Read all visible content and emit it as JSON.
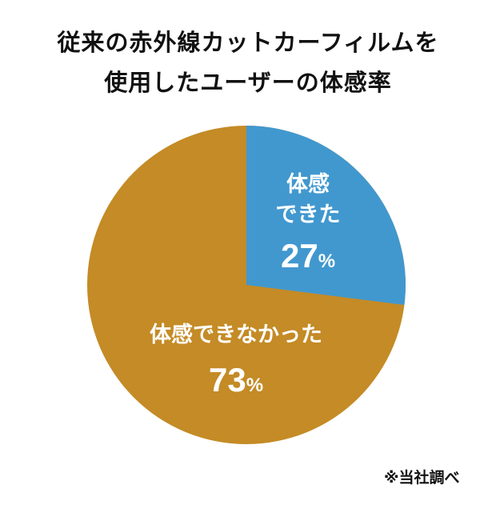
{
  "title": {
    "line1": "従来の赤外線カットカーフィルムを",
    "line2": "使用したユーザーの体感率"
  },
  "slices": [
    {
      "name_line1": "体感",
      "name_line2": "できた",
      "value": "27",
      "unit": "%",
      "color": "#4198CF"
    },
    {
      "name": "体感できなかった",
      "value": "73",
      "unit": "%",
      "color": "#C48B26"
    }
  ],
  "note": "※当社調べ",
  "chart_data": {
    "type": "pie",
    "title": "従来の赤外線カットカーフィルムを使用したユーザーの体感率",
    "categories": [
      "体感できた",
      "体感できなかった"
    ],
    "values": [
      27,
      73
    ],
    "unit": "%",
    "colors": [
      "#4198CF",
      "#C48B26"
    ],
    "start_angle": "12 o'clock, clockwise",
    "legend": "none (labels inside slices)",
    "annotation": "※当社調べ"
  }
}
